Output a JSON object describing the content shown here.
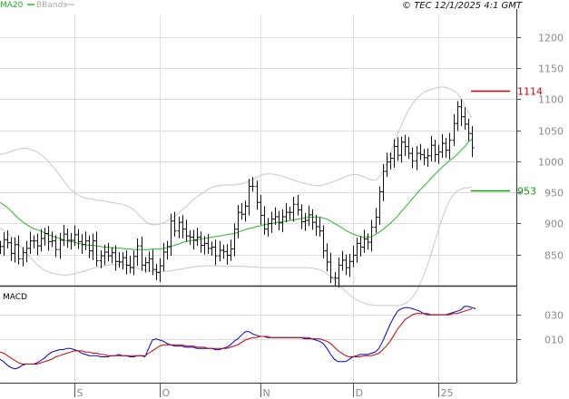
{
  "header": {
    "legend_ma": "MA20",
    "legend_bb": "BBands",
    "copyright": "© TEC 12/1/2025 4:1 GMT"
  },
  "macd_panel": {
    "label": "MACD",
    "y_ticks": [
      "030",
      "010"
    ]
  },
  "colors": {
    "price_bars": "#111111",
    "ma20": "#22bb22",
    "bbands": "#c8c8c8",
    "resistance": "#cc0000",
    "support": "#119911",
    "macd": "#0000cc",
    "signal": "#cc0000",
    "grid": "#dddddd",
    "axis": "#555555"
  },
  "chart_data": [
    {
      "type": "ohlc",
      "legend": [
        "MA20",
        "BBands"
      ],
      "y_ticks": [
        850,
        900,
        950,
        1000,
        1050,
        1100,
        1150,
        1200
      ],
      "ylim": [
        800,
        1235
      ],
      "x_ticks": [
        "S",
        "O",
        "N",
        "D",
        "25"
      ],
      "x_tick_positions": [
        20,
        43,
        70,
        95,
        118
      ],
      "x_range": [
        0,
        127
      ],
      "prices": [
        863,
        874,
        869,
        852,
        866,
        843,
        853,
        860,
        872,
        872,
        864,
        876,
        884,
        871,
        872,
        858,
        873,
        883,
        873,
        873,
        882,
        871,
        866,
        872,
        856,
        872,
        840,
        848,
        854,
        848,
        853,
        839,
        838,
        845,
        833,
        829,
        847,
        864,
        833,
        837,
        843,
        826,
        821,
        832,
        854,
        863,
        904,
        888,
        902,
        891,
        880,
        878,
        873,
        878,
        865,
        868,
        860,
        862,
        848,
        857,
        855,
        849,
        859,
        891,
        918,
        915,
        928,
        960,
        960,
        934,
        913,
        891,
        900,
        907,
        911,
        901,
        911,
        918,
        918,
        931,
        922,
        903,
        905,
        914,
        902,
        895,
        888,
        856,
        838,
        813,
        812,
        833,
        841,
        829,
        839,
        849,
        868,
        862,
        875,
        870,
        894,
        910,
        951,
        984,
        999,
        1005,
        1024,
        1010,
        1031,
        1024,
        1013,
        1001,
        1013,
        1011,
        1006,
        1009,
        1026,
        1011,
        1015,
        1029,
        1018,
        1034,
        1061,
        1088,
        1072,
        1060,
        1045,
        1022
      ],
      "ma20": [
        934,
        930,
        926,
        920,
        914,
        908,
        903,
        899,
        895,
        892,
        890,
        888,
        885,
        882,
        880,
        878,
        876,
        874,
        872,
        871,
        870,
        868,
        867,
        866,
        865,
        865,
        864,
        863,
        862,
        862,
        861,
        861,
        860,
        860,
        859,
        859,
        858,
        858,
        858,
        858,
        858,
        859,
        859,
        859,
        860,
        861,
        863,
        865,
        867,
        869,
        871,
        872,
        873,
        874,
        875,
        876,
        877,
        878,
        879,
        880,
        881,
        882,
        883,
        884,
        886,
        888,
        890,
        892,
        893,
        895,
        896,
        898,
        899,
        900,
        901,
        902,
        903,
        904,
        905,
        906,
        907,
        908,
        909,
        910,
        910,
        911,
        910,
        909,
        907,
        904,
        900,
        897,
        893,
        889,
        886,
        883,
        881,
        879,
        878,
        878,
        879,
        882,
        886,
        890,
        895,
        900,
        906,
        912,
        919,
        926,
        933,
        940,
        947,
        954,
        960,
        966,
        973,
        979,
        985,
        991,
        996,
        1001,
        1006,
        1011,
        1017,
        1023,
        1031,
        1036
      ],
      "bb_upper": [
        1011,
        1012,
        1014,
        1016,
        1018,
        1020,
        1021,
        1021,
        1020,
        1018,
        1015,
        1011,
        1006,
        1000,
        993,
        986,
        978,
        970,
        962,
        955,
        950,
        946,
        943,
        941,
        940,
        939,
        938,
        937,
        936,
        935,
        934,
        933,
        932,
        931,
        929,
        926,
        922,
        916,
        910,
        904,
        900,
        898,
        898,
        899,
        901,
        904,
        908,
        912,
        916,
        922,
        927,
        933,
        938,
        943,
        947,
        951,
        955,
        958,
        960,
        961,
        962,
        962,
        962,
        962,
        963,
        964,
        966,
        968,
        971,
        974,
        977,
        979,
        980,
        980,
        979,
        978,
        976,
        974,
        972,
        970,
        968,
        966,
        965,
        963,
        962,
        961,
        961,
        962,
        964,
        966,
        968,
        970,
        973,
        976,
        978,
        979,
        979,
        977,
        975,
        972,
        970,
        970,
        974,
        984,
        997,
        1012,
        1028,
        1044,
        1058,
        1071,
        1083,
        1093,
        1100,
        1106,
        1111,
        1114,
        1116,
        1118,
        1119,
        1120,
        1119,
        1117,
        1114,
        1110,
        1102,
        1091,
        1080,
        1070
      ],
      "bb_lower": [
        893,
        889,
        885,
        880,
        874,
        867,
        860,
        853,
        846,
        840,
        834,
        829,
        825,
        822,
        820,
        819,
        818,
        817,
        817,
        818,
        819,
        821,
        822,
        824,
        826,
        828,
        829,
        831,
        832,
        833,
        834,
        834,
        834,
        834,
        833,
        832,
        830,
        828,
        826,
        825,
        824,
        823,
        823,
        823,
        823,
        823,
        824,
        825,
        826,
        827,
        828,
        829,
        830,
        831,
        831,
        832,
        832,
        832,
        832,
        832,
        831,
        831,
        831,
        831,
        831,
        831,
        831,
        830,
        830,
        830,
        829,
        829,
        829,
        829,
        829,
        829,
        829,
        829,
        829,
        829,
        829,
        829,
        829,
        829,
        828,
        827,
        826,
        823,
        819,
        814,
        809,
        803,
        797,
        791,
        786,
        781,
        777,
        774,
        772,
        770,
        769,
        768,
        768,
        768,
        768,
        768,
        768,
        768,
        769,
        771,
        775,
        781,
        790,
        802,
        816,
        832,
        851,
        870,
        890,
        908,
        924,
        937,
        946,
        952,
        955,
        957,
        958,
        958
      ],
      "levels": [
        {
          "label": "1114",
          "value": 1114
        },
        {
          "label": "953",
          "value": 953
        }
      ]
    },
    {
      "type": "line",
      "title": "MACD",
      "y_ticks": [
        30,
        10
      ],
      "ylim": [
        -25,
        52
      ],
      "series": [
        {
          "values": [
            -7,
            -9,
            -12,
            -14,
            -15,
            -14,
            -12,
            -11,
            -11,
            -11,
            -10,
            -8,
            -6,
            -3,
            -1,
            0,
            1,
            1,
            2,
            2,
            1,
            0,
            -2,
            -3,
            -4,
            -4,
            -4,
            -5,
            -5,
            -5,
            -4,
            -4,
            -3,
            -4,
            -4,
            -5,
            -5,
            -4,
            -4,
            -5,
            2,
            9,
            10,
            9,
            8,
            6,
            5,
            4,
            4,
            4,
            3,
            3,
            3,
            2,
            2,
            2,
            2,
            2,
            1,
            1,
            2,
            3,
            5,
            8,
            10,
            13,
            16,
            16,
            14,
            13,
            12,
            12,
            11,
            11,
            11,
            11,
            11,
            11,
            11,
            11,
            11,
            11,
            10,
            10,
            10,
            9,
            8,
            6,
            2,
            -3,
            -7,
            -9,
            -9,
            -9,
            -7,
            -5,
            -4,
            -3,
            -3,
            -3,
            -2,
            -1,
            2,
            8,
            15,
            22,
            28,
            33,
            35,
            36,
            36,
            35,
            34,
            33,
            31,
            30,
            30,
            30,
            30,
            30,
            30,
            31,
            32,
            33,
            34,
            37,
            37,
            36,
            35
          ]
        },
        {
          "values": [
            -1,
            -2,
            -4,
            -6,
            -8,
            -10,
            -11,
            -11,
            -11,
            -11,
            -11,
            -10,
            -9,
            -8,
            -7,
            -5,
            -4,
            -3,
            -2,
            -1,
            0,
            0,
            0,
            -1,
            -1,
            -2,
            -2,
            -3,
            -3,
            -4,
            -4,
            -4,
            -4,
            -4,
            -4,
            -4,
            -4,
            -4,
            -4,
            -4,
            -2,
            0,
            2,
            4,
            5,
            5,
            5,
            5,
            5,
            5,
            4,
            4,
            4,
            3,
            3,
            3,
            2,
            2,
            2,
            2,
            2,
            2,
            3,
            4,
            5,
            7,
            9,
            10,
            11,
            11,
            12,
            12,
            12,
            11,
            11,
            11,
            11,
            11,
            11,
            11,
            11,
            11,
            11,
            11,
            10,
            10,
            10,
            9,
            8,
            6,
            3,
            0,
            -2,
            -4,
            -5,
            -5,
            -5,
            -5,
            -4,
            -4,
            -4,
            -3,
            -2,
            1,
            4,
            8,
            13,
            18,
            22,
            26,
            28,
            30,
            31,
            31,
            31,
            31,
            30,
            30,
            30,
            30,
            30,
            30,
            31,
            31,
            32,
            33,
            34,
            35
          ]
        }
      ]
    }
  ]
}
